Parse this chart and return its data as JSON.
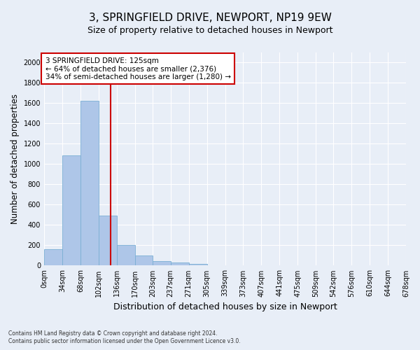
{
  "title": "3, SPRINGFIELD DRIVE, NEWPORT, NP19 9EW",
  "subtitle": "Size of property relative to detached houses in Newport",
  "xlabel": "Distribution of detached houses by size in Newport",
  "ylabel": "Number of detached properties",
  "footnote1": "Contains HM Land Registry data © Crown copyright and database right 2024.",
  "footnote2": "Contains public sector information licensed under the Open Government Licence v3.0.",
  "bar_edges": [
    0,
    34,
    68,
    102,
    136,
    170,
    203,
    237,
    271,
    305,
    339,
    373,
    407,
    441,
    475,
    509,
    542,
    576,
    610,
    644,
    678
  ],
  "bar_heights": [
    160,
    1085,
    1625,
    490,
    200,
    100,
    42,
    28,
    18,
    0,
    0,
    0,
    0,
    0,
    0,
    0,
    0,
    0,
    0,
    0
  ],
  "bar_color": "#aec6e8",
  "bar_edge_color": "#7aafd4",
  "property_line_x": 125,
  "property_line_color": "#cc0000",
  "annotation_text": "3 SPRINGFIELD DRIVE: 125sqm\n← 64% of detached houses are smaller (2,376)\n34% of semi-detached houses are larger (1,280) →",
  "annotation_box_color": "#cc0000",
  "ylim": [
    0,
    2100
  ],
  "yticks": [
    0,
    200,
    400,
    600,
    800,
    1000,
    1200,
    1400,
    1600,
    1800,
    2000
  ],
  "tick_labels": [
    "0sqm",
    "34sqm",
    "68sqm",
    "102sqm",
    "136sqm",
    "170sqm",
    "203sqm",
    "237sqm",
    "271sqm",
    "305sqm",
    "339sqm",
    "373sqm",
    "407sqm",
    "441sqm",
    "475sqm",
    "509sqm",
    "542sqm",
    "576sqm",
    "610sqm",
    "644sqm",
    "678sqm"
  ],
  "bg_color": "#e8eef7",
  "plot_bg_color": "#e8eef7",
  "grid_color": "#ffffff",
  "title_fontsize": 11,
  "subtitle_fontsize": 9,
  "tick_fontsize": 7,
  "ylabel_fontsize": 8.5,
  "xlabel_fontsize": 9
}
